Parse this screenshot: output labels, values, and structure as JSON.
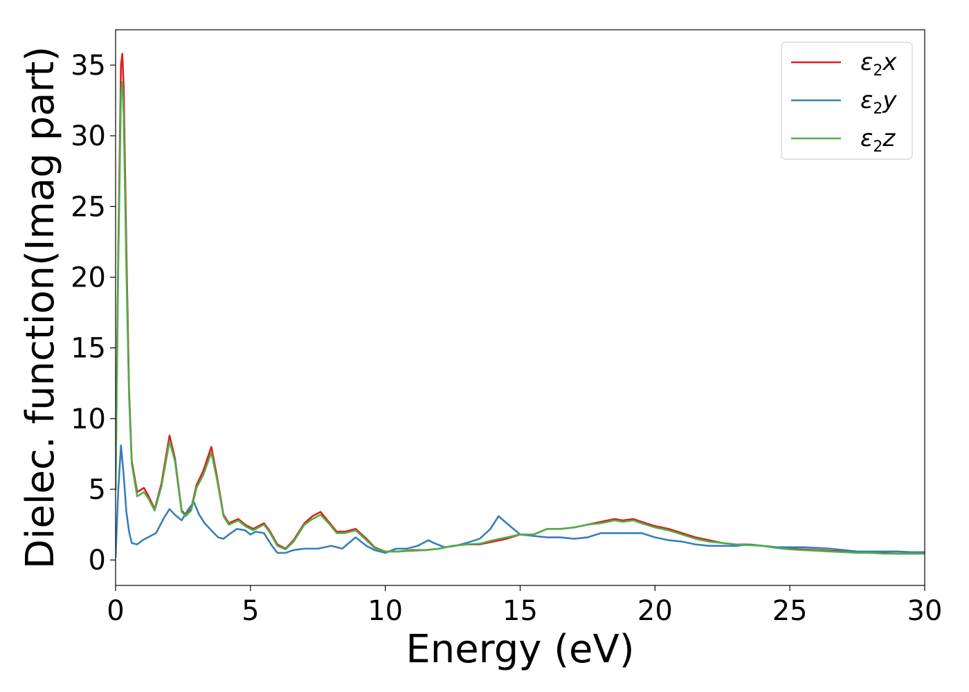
{
  "chart_data": {
    "type": "line",
    "title": "",
    "xlabel": "Energy (eV)",
    "ylabel": "Dielec. function(Imag part)",
    "xlim": [
      0,
      30
    ],
    "ylim": [
      -1.8,
      37.5
    ],
    "xticks": [
      0,
      5,
      10,
      15,
      20,
      25,
      30
    ],
    "yticks": [
      0,
      5,
      10,
      15,
      20,
      25,
      30,
      35
    ],
    "grid": false,
    "legend": "top-right",
    "series": [
      {
        "name": "ε2x",
        "legend_main": "ε",
        "legend_sub": "2",
        "legend_var": "x",
        "color": "#e41a1c",
        "x": [
          0,
          0.1,
          0.2,
          0.25,
          0.3,
          0.4,
          0.5,
          0.6,
          0.8,
          1.05,
          1.2,
          1.45,
          1.7,
          2.0,
          2.2,
          2.45,
          2.6,
          2.8,
          3.0,
          3.25,
          3.55,
          3.75,
          4.0,
          4.2,
          4.55,
          4.8,
          5.1,
          5.5,
          5.7,
          6.0,
          6.3,
          6.6,
          7.0,
          7.3,
          7.6,
          7.9,
          8.2,
          8.5,
          8.9,
          9.3,
          9.6,
          10.0,
          10.5,
          11.0,
          11.5,
          12.0,
          12.5,
          13.0,
          13.5,
          14.0,
          14.5,
          15.0,
          15.5,
          16.0,
          16.5,
          17.0,
          17.5,
          18.0,
          18.5,
          18.8,
          19.2,
          19.5,
          20.0,
          20.5,
          21.0,
          21.5,
          22.0,
          22.5,
          23.0,
          23.5,
          24.0,
          24.5,
          25.0,
          25.5,
          26.0,
          26.5,
          27.0,
          27.5,
          28.0,
          28.5,
          29.0,
          29.5,
          30.0
        ],
        "y": [
          5.0,
          22.0,
          35.0,
          35.8,
          33.5,
          22.0,
          12.0,
          7.0,
          4.8,
          5.1,
          4.6,
          3.6,
          5.4,
          8.8,
          7.2,
          3.5,
          3.2,
          3.6,
          5.3,
          6.3,
          8.0,
          6.0,
          3.2,
          2.6,
          2.9,
          2.5,
          2.2,
          2.6,
          2.1,
          1.1,
          0.8,
          1.4,
          2.6,
          3.1,
          3.4,
          2.7,
          2.0,
          2.0,
          2.2,
          1.5,
          0.9,
          0.6,
          0.6,
          0.7,
          0.7,
          0.8,
          1.0,
          1.1,
          1.1,
          1.3,
          1.5,
          1.8,
          1.8,
          2.2,
          2.2,
          2.3,
          2.5,
          2.7,
          2.9,
          2.8,
          2.9,
          2.7,
          2.4,
          2.2,
          1.9,
          1.6,
          1.4,
          1.2,
          1.1,
          1.1,
          1.0,
          0.9,
          0.8,
          0.75,
          0.7,
          0.65,
          0.6,
          0.55,
          0.5,
          0.5,
          0.45,
          0.45,
          0.45
        ]
      },
      {
        "name": "ε2y",
        "legend_main": "ε",
        "legend_sub": "2",
        "legend_var": "y",
        "color": "#377eb8",
        "x": [
          0,
          0.1,
          0.2,
          0.3,
          0.4,
          0.5,
          0.6,
          0.8,
          1.0,
          1.2,
          1.5,
          1.8,
          2.0,
          2.2,
          2.45,
          2.7,
          2.9,
          3.1,
          3.3,
          3.6,
          3.8,
          4.0,
          4.2,
          4.5,
          4.8,
          5.0,
          5.2,
          5.5,
          5.8,
          6.0,
          6.3,
          6.6,
          7.0,
          7.5,
          8.0,
          8.4,
          8.9,
          9.3,
          9.6,
          10.0,
          10.4,
          10.8,
          11.2,
          11.6,
          11.8,
          12.2,
          12.6,
          13.0,
          13.5,
          13.9,
          14.2,
          14.5,
          15.0,
          15.5,
          16.0,
          16.5,
          17.0,
          17.5,
          18.0,
          18.5,
          19.0,
          19.5,
          20.0,
          20.5,
          21.0,
          21.5,
          22.0,
          22.5,
          23.0,
          23.5,
          24.0,
          24.5,
          25.0,
          25.5,
          26.0,
          26.5,
          27.0,
          27.5,
          28.0,
          28.5,
          29.0,
          29.5,
          30.0
        ],
        "y": [
          0.2,
          5.0,
          8.1,
          6.0,
          3.4,
          2.0,
          1.2,
          1.1,
          1.4,
          1.6,
          1.9,
          3.0,
          3.6,
          3.2,
          2.8,
          3.6,
          4.1,
          3.2,
          2.6,
          2.0,
          1.6,
          1.5,
          1.8,
          2.2,
          2.1,
          1.8,
          2.0,
          1.9,
          1.0,
          0.5,
          0.5,
          0.7,
          0.8,
          0.8,
          1.0,
          0.8,
          1.6,
          1.0,
          0.7,
          0.5,
          0.8,
          0.8,
          1.0,
          1.4,
          1.2,
          0.9,
          1.0,
          1.2,
          1.5,
          2.2,
          3.1,
          2.6,
          1.8,
          1.7,
          1.6,
          1.6,
          1.5,
          1.6,
          1.9,
          1.9,
          1.9,
          1.9,
          1.6,
          1.4,
          1.3,
          1.1,
          1.0,
          1.0,
          1.0,
          1.1,
          1.0,
          0.9,
          0.9,
          0.9,
          0.85,
          0.8,
          0.7,
          0.6,
          0.6,
          0.6,
          0.6,
          0.55,
          0.55
        ]
      },
      {
        "name": "ε2z",
        "legend_main": "ε",
        "legend_sub": "2",
        "legend_var": "z",
        "color": "#4daf4a",
        "x": [
          0,
          0.1,
          0.2,
          0.25,
          0.3,
          0.4,
          0.5,
          0.6,
          0.8,
          1.05,
          1.2,
          1.45,
          1.7,
          2.0,
          2.2,
          2.45,
          2.6,
          2.8,
          3.0,
          3.25,
          3.55,
          3.75,
          4.0,
          4.2,
          4.55,
          4.8,
          5.1,
          5.5,
          5.7,
          6.0,
          6.3,
          6.6,
          7.0,
          7.3,
          7.6,
          7.9,
          8.2,
          8.5,
          8.9,
          9.3,
          9.6,
          10.0,
          10.5,
          11.0,
          11.5,
          12.0,
          12.5,
          13.0,
          13.5,
          14.0,
          14.5,
          15.0,
          15.5,
          16.0,
          16.5,
          17.0,
          17.5,
          18.0,
          18.5,
          18.8,
          19.2,
          19.5,
          20.0,
          20.5,
          21.0,
          21.5,
          22.0,
          22.5,
          23.0,
          23.5,
          24.0,
          24.5,
          25.0,
          25.5,
          26.0,
          26.5,
          27.0,
          27.5,
          28.0,
          28.5,
          29.0,
          29.5,
          30.0
        ],
        "y": [
          5.0,
          21.0,
          33.0,
          33.8,
          31.5,
          20.5,
          11.5,
          6.8,
          4.5,
          4.8,
          4.4,
          3.5,
          5.2,
          8.4,
          7.0,
          3.4,
          3.1,
          3.5,
          5.1,
          6.0,
          7.6,
          5.8,
          3.1,
          2.5,
          2.8,
          2.4,
          2.1,
          2.5,
          2.0,
          1.0,
          0.75,
          1.3,
          2.5,
          2.9,
          3.2,
          2.6,
          1.9,
          1.9,
          2.1,
          1.4,
          0.85,
          0.6,
          0.6,
          0.65,
          0.7,
          0.8,
          1.0,
          1.1,
          1.15,
          1.4,
          1.6,
          1.8,
          1.8,
          2.2,
          2.2,
          2.3,
          2.5,
          2.6,
          2.8,
          2.7,
          2.8,
          2.6,
          2.3,
          2.1,
          1.8,
          1.5,
          1.3,
          1.2,
          1.1,
          1.05,
          1.0,
          0.85,
          0.75,
          0.7,
          0.65,
          0.6,
          0.55,
          0.5,
          0.5,
          0.45,
          0.45,
          0.45,
          0.45
        ]
      }
    ]
  }
}
